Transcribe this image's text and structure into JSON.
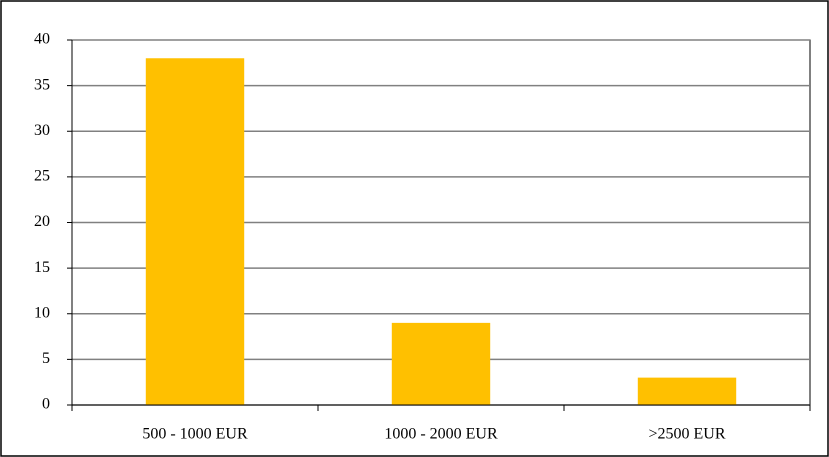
{
  "chart_data": {
    "type": "bar",
    "categories": [
      "500 - 1000 EUR",
      "1000 - 2000 EUR",
      ">2500 EUR"
    ],
    "values": [
      38,
      9,
      3
    ],
    "color": "#ffc000",
    "ylim": [
      0,
      40
    ],
    "yticks": [
      0,
      5,
      10,
      15,
      20,
      25,
      30,
      35,
      40
    ],
    "grid": true
  }
}
